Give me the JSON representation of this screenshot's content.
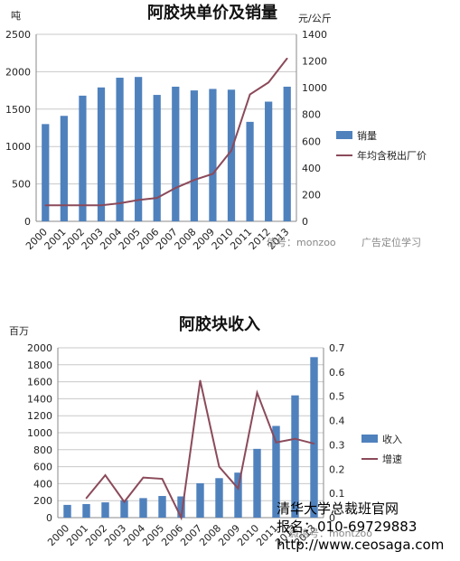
{
  "chart_data": [
    {
      "type": "bar",
      "title": "阿胶块单价及销量",
      "ylabel_left": "吨",
      "ylabel_right": "元/公斤",
      "categories": [
        "2000",
        "2001",
        "2002",
        "2003",
        "2004",
        "2005",
        "2006",
        "2007",
        "2008",
        "2009",
        "2010",
        "2011",
        "2012",
        "2013"
      ],
      "ylim_left": [
        0,
        2500
      ],
      "yticks_left": [
        "0",
        "500",
        "1000",
        "1500",
        "2000",
        "2500"
      ],
      "ylim_right": [
        0,
        1400
      ],
      "yticks_right": [
        "0",
        "200",
        "400",
        "600",
        "800",
        "1000",
        "1200",
        "1400"
      ],
      "grid": true,
      "legend_position": "right",
      "series": [
        {
          "name": "销量",
          "axis": "left",
          "kind": "bar",
          "color": "#4F81BD",
          "values": [
            1300,
            1410,
            1680,
            1790,
            1920,
            1930,
            1690,
            1800,
            1750,
            1770,
            1760,
            1330,
            1600,
            1800
          ]
        },
        {
          "name": "年均含税出厂价",
          "axis": "right",
          "kind": "line",
          "color": "#8B4A5A",
          "values": [
            120,
            120,
            120,
            120,
            135,
            160,
            175,
            250,
            310,
            355,
            530,
            950,
            1040,
            1220
          ]
        }
      ]
    },
    {
      "type": "bar",
      "title": "阿胶块收入",
      "ylabel_left": "百万",
      "categories": [
        "2000",
        "2001",
        "2002",
        "2003",
        "2004",
        "2005",
        "2006",
        "2007",
        "2008",
        "2009",
        "2010",
        "2011",
        "2012",
        "2013"
      ],
      "ylim_left": [
        0,
        2000
      ],
      "yticks_left": [
        "0",
        "200",
        "400",
        "600",
        "800",
        "1000",
        "1200",
        "1400",
        "1600",
        "1800",
        "2000"
      ],
      "ylim_right": [
        0,
        0.7
      ],
      "yticks_right": [
        "0",
        "0.1",
        "0.2",
        "0.3",
        "0.4",
        "0.5",
        "0.6",
        "0.7"
      ],
      "grid": true,
      "legend_position": "right",
      "series": [
        {
          "name": "收入",
          "axis": "left",
          "kind": "bar",
          "color": "#4F81BD",
          "values": [
            150,
            160,
            180,
            205,
            230,
            255,
            250,
            405,
            465,
            530,
            810,
            1080,
            1440,
            1890
          ]
        },
        {
          "name": "增速",
          "axis": "right",
          "kind": "line",
          "color": "#8B4A5A",
          "values": [
            null,
            0.08,
            0.175,
            0.065,
            0.165,
            0.16,
            0.0,
            0.565,
            0.21,
            0.12,
            0.515,
            0.31,
            0.325,
            0.305
          ]
        }
      ]
    }
  ],
  "watermarks": [
    "微信号：montzoo",
    "信号：monzoo",
    "广告定位学习"
  ],
  "banner": {
    "line1": "清华大学总裁班官网",
    "line2": "报名：010-69729883",
    "line3": "http://www.ceosaga.com"
  }
}
